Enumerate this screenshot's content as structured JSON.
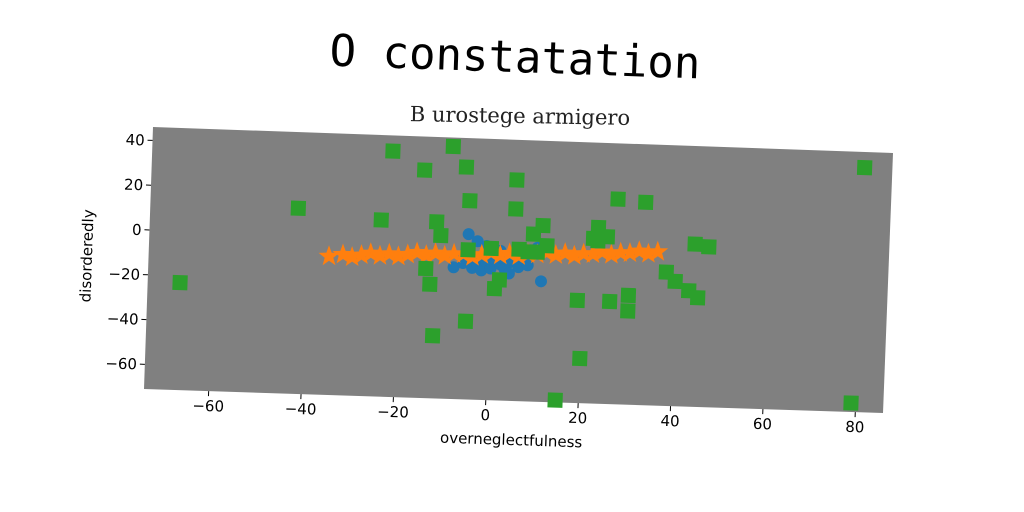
{
  "title": "O constatation",
  "subtitle": "B urostege armigero",
  "colors": {
    "plot_background": "#808080",
    "series_blue": "#1f77b4",
    "series_orange": "#ff7f0e",
    "series_green": "#2ca02c"
  },
  "chart_data": {
    "type": "scatter",
    "title": "O constatation",
    "subtitle": "B urostege armigero",
    "xlabel": "overneglectfulness",
    "ylabel": "disorderedly",
    "xlim": [
      -74,
      86
    ],
    "ylim": [
      -71,
      46
    ],
    "xticks": [
      -60,
      -40,
      -20,
      0,
      20,
      40,
      60,
      80
    ],
    "yticks": [
      40,
      20,
      0,
      -20,
      -40,
      -60
    ],
    "grid": false,
    "series": [
      {
        "marker": "circle",
        "color": "#1f77b4",
        "points": [
          [
            -8,
            -12
          ],
          [
            -6,
            -10
          ],
          [
            -5,
            3
          ],
          [
            -4,
            -12
          ],
          [
            -3,
            -10
          ],
          [
            -2,
            -13
          ],
          [
            -1,
            -9
          ],
          [
            0,
            -12
          ],
          [
            1,
            -8
          ],
          [
            2,
            -10
          ],
          [
            3,
            -12
          ],
          [
            4,
            -9
          ],
          [
            5,
            -8
          ],
          [
            6,
            -11
          ],
          [
            -3,
            0
          ],
          [
            -1,
            -2
          ],
          [
            2,
            -4
          ],
          [
            7,
            -3
          ],
          [
            9,
            -4
          ],
          [
            10,
            -2
          ],
          [
            11,
            -17
          ],
          [
            8,
            -10
          ],
          [
            -5,
            -8
          ],
          [
            4,
            -14
          ]
        ]
      },
      {
        "marker": "star",
        "color": "#ff7f0e",
        "points": [
          [
            -35,
            -9
          ],
          [
            -32,
            -8
          ],
          [
            -30,
            -9
          ],
          [
            -28,
            -8
          ],
          [
            -26,
            -7
          ],
          [
            -24,
            -8
          ],
          [
            -22,
            -7
          ],
          [
            -20,
            -8
          ],
          [
            -18,
            -7
          ],
          [
            -16,
            -6
          ],
          [
            -14,
            -7
          ],
          [
            -12,
            -6
          ],
          [
            -10,
            -7
          ],
          [
            -8,
            -6
          ],
          [
            -6,
            -6
          ],
          [
            -4,
            -7
          ],
          [
            -2,
            -6
          ],
          [
            0,
            -5
          ],
          [
            2,
            -6
          ],
          [
            4,
            -5
          ],
          [
            6,
            -6
          ],
          [
            8,
            -5
          ],
          [
            10,
            -5
          ],
          [
            12,
            -4
          ],
          [
            14,
            -5
          ],
          [
            16,
            -4
          ],
          [
            18,
            -5
          ],
          [
            20,
            -4
          ],
          [
            22,
            -4
          ],
          [
            24,
            -3
          ],
          [
            26,
            -4
          ],
          [
            28,
            -3
          ],
          [
            30,
            -3
          ],
          [
            32,
            -2
          ],
          [
            34,
            -3
          ],
          [
            36,
            -2
          ]
        ]
      },
      {
        "marker": "square",
        "color": "#2ca02c",
        "points": [
          [
            -67,
            -23
          ],
          [
            -42,
            12
          ],
          [
            -24,
            8
          ],
          [
            -22,
            39
          ],
          [
            -15,
            31
          ],
          [
            -14,
            -13
          ],
          [
            -13,
            -20
          ],
          [
            -12,
            8
          ],
          [
            -12,
            -43
          ],
          [
            -11,
            2
          ],
          [
            -9,
            42
          ],
          [
            -6,
            33
          ],
          [
            -5,
            18
          ],
          [
            -5,
            -36
          ],
          [
            -5,
            -4
          ],
          [
            0,
            -3
          ],
          [
            1,
            -21
          ],
          [
            2,
            -17
          ],
          [
            5,
            15
          ],
          [
            5,
            28
          ],
          [
            6,
            -3
          ],
          [
            8,
            -4
          ],
          [
            9,
            4
          ],
          [
            10,
            -4
          ],
          [
            11,
            8
          ],
          [
            12,
            -1
          ],
          [
            15,
            -70
          ],
          [
            19,
            -25
          ],
          [
            20,
            -51
          ],
          [
            22,
            3
          ],
          [
            23,
            8
          ],
          [
            23,
            2
          ],
          [
            25,
            4
          ],
          [
            26,
            -25
          ],
          [
            27,
            21
          ],
          [
            30,
            -22
          ],
          [
            30,
            -29
          ],
          [
            33,
            20
          ],
          [
            38,
            -11
          ],
          [
            40,
            -15
          ],
          [
            43,
            -19
          ],
          [
            44,
            2
          ],
          [
            45,
            -22
          ],
          [
            47,
            1
          ],
          [
            80,
            39
          ],
          [
            79,
            -67
          ]
        ]
      }
    ]
  }
}
